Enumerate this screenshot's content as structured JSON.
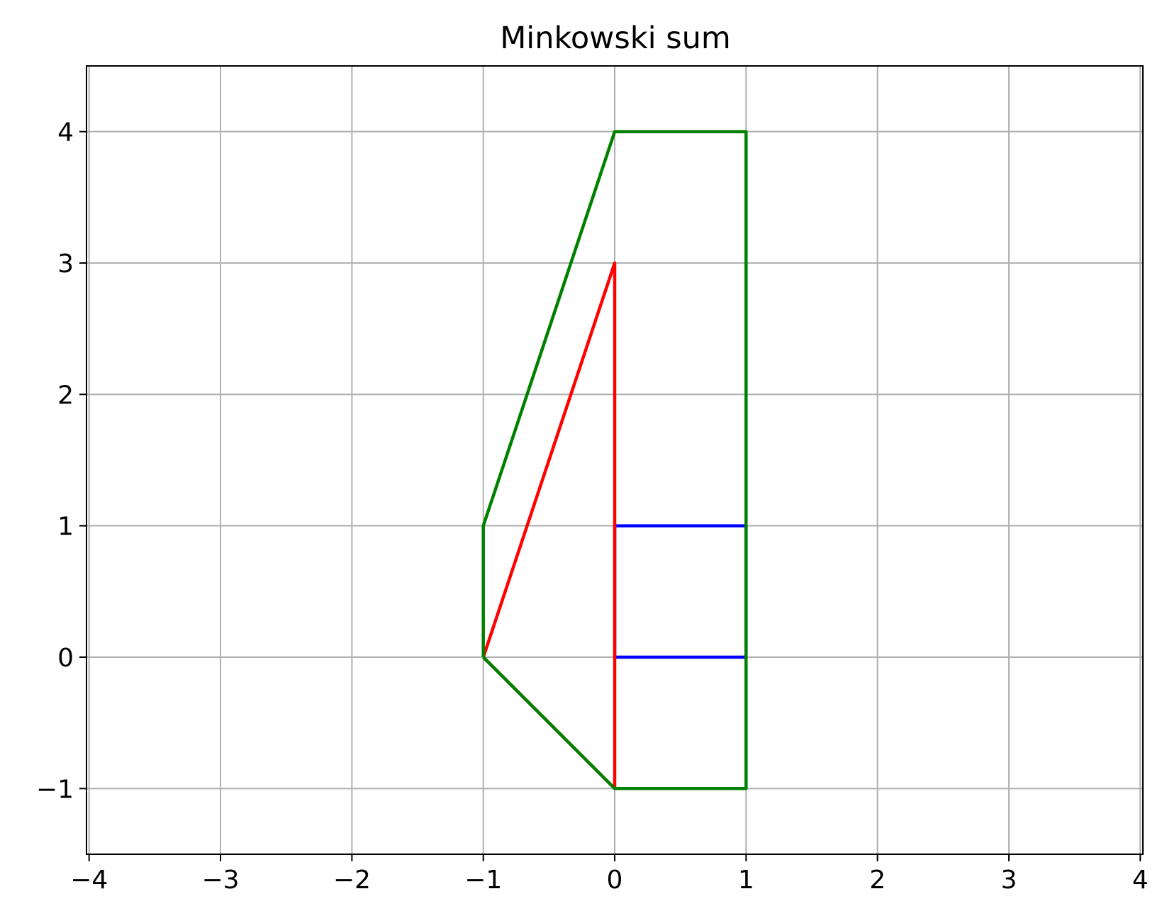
{
  "chart_data": {
    "type": "line",
    "title": "Minkowski sum",
    "xlabel": "",
    "ylabel": "",
    "xlim": [
      -4.02,
      4.02
    ],
    "ylim": [
      -1.5,
      4.5
    ],
    "grid": true,
    "xticks": [
      -4,
      -3,
      -2,
      -1,
      0,
      1,
      2,
      3,
      4
    ],
    "xtick_labels": [
      "−4",
      "−3",
      "−2",
      "−1",
      "0",
      "1",
      "2",
      "3",
      "4"
    ],
    "yticks": [
      -1,
      0,
      1,
      2,
      3,
      4
    ],
    "ytick_labels": [
      "−1",
      "0",
      "1",
      "2",
      "3",
      "4"
    ],
    "series": [
      {
        "color": "#0000ff",
        "x": [
          0,
          1,
          1,
          0,
          0
        ],
        "y": [
          0,
          0,
          1,
          1,
          0
        ]
      },
      {
        "color": "#ff0000",
        "x": [
          -1,
          0,
          0,
          -1
        ],
        "y": [
          0,
          -1,
          3,
          0
        ]
      },
      {
        "color": "#008000",
        "x": [
          -1,
          0,
          1,
          1,
          0,
          -1,
          -1
        ],
        "y": [
          0,
          -1,
          -1,
          4,
          4,
          1,
          0
        ]
      }
    ]
  }
}
